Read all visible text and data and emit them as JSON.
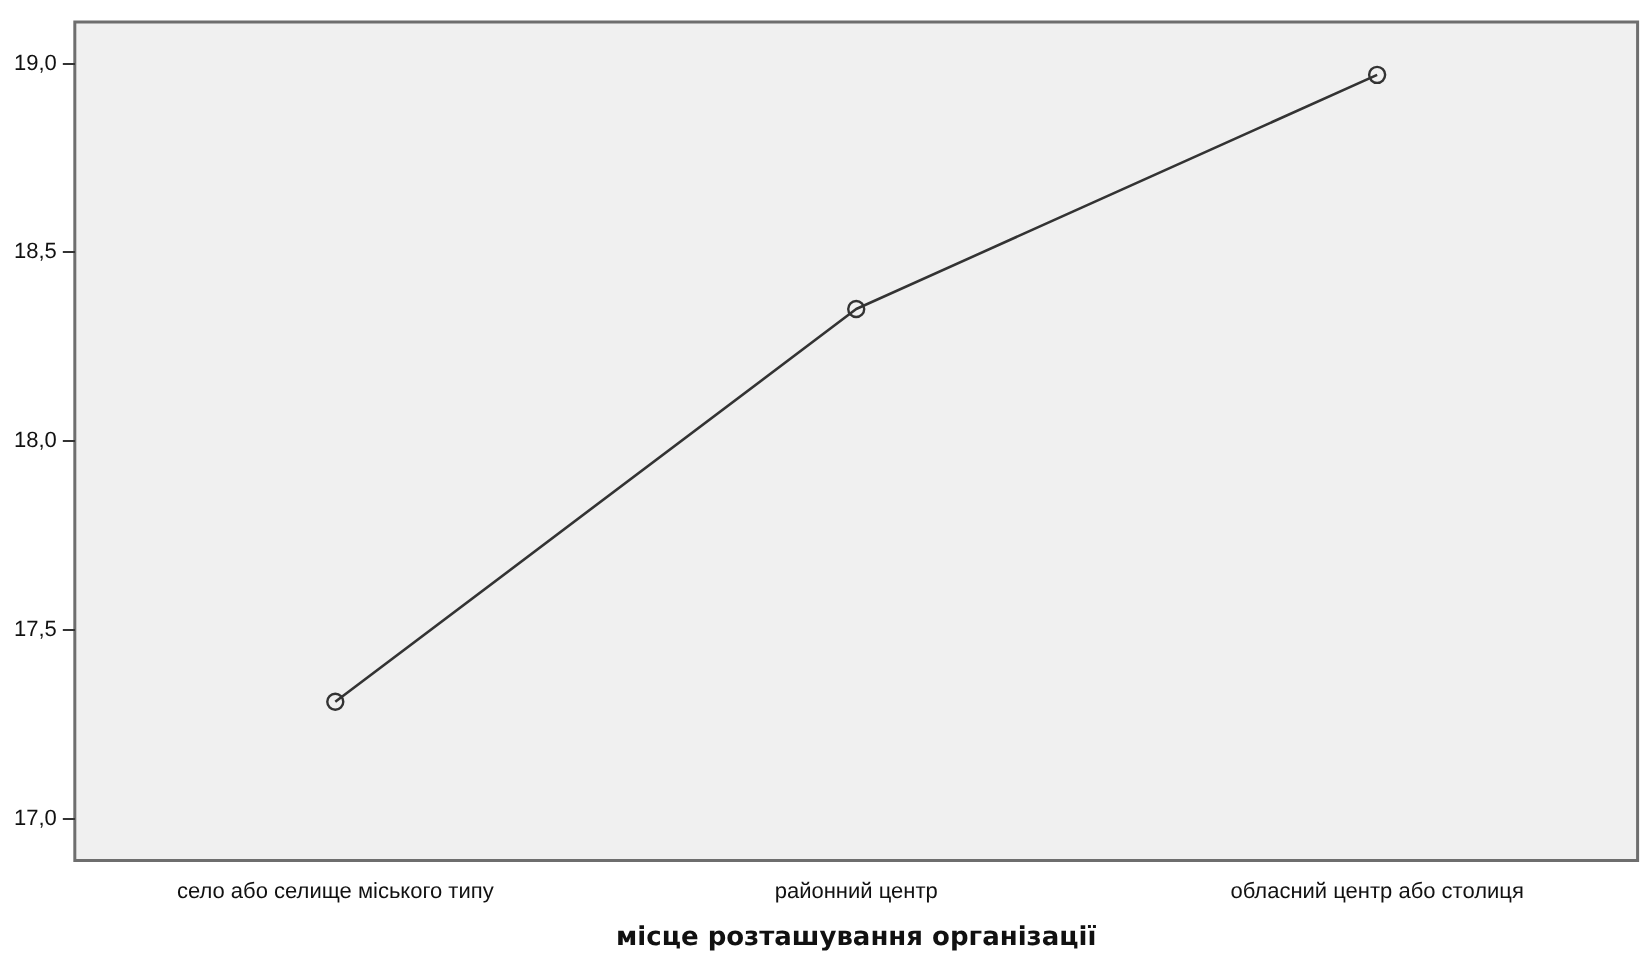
{
  "chart_data": {
    "type": "line",
    "xlabel": "місце розташування організації",
    "categories": [
      "село або селище міського типу",
      "районний центр",
      "обласний центр або столиця"
    ],
    "series": [
      {
        "color": "#333333",
        "values": [
          17.31,
          18.35,
          18.97
        ]
      }
    ],
    "ylim": [
      16.89,
      19.11
    ],
    "yticks": [
      {
        "value": 17,
        "label": "17,0"
      },
      {
        "value": 17.5,
        "label": "17,5"
      },
      {
        "value": 18,
        "label": "18,0"
      },
      {
        "value": 18.5,
        "label": "18,5"
      },
      {
        "value": 19,
        "label": "19,0"
      }
    ],
    "grid": false,
    "legend": false,
    "marker": "circle",
    "line_style": "solid"
  }
}
